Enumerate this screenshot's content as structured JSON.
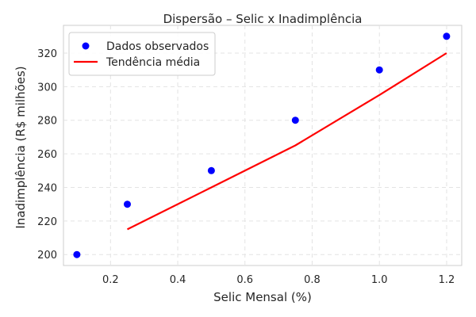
{
  "chart_data": {
    "type": "scatter",
    "title": "Dispersão – Selic x Inadimplência",
    "xlabel": "Selic Mensal (%)",
    "ylabel": "Inadimplência (R$ milhões)",
    "xlim": [
      0.06,
      1.245
    ],
    "ylim": [
      193.5,
      336.5
    ],
    "xticks": [
      0.2,
      0.4,
      0.6,
      0.8,
      1.0,
      1.2
    ],
    "xtick_labels": [
      "0.2",
      "0.4",
      "0.6",
      "0.8",
      "1.0",
      "1.2"
    ],
    "yticks": [
      200,
      220,
      240,
      260,
      280,
      300,
      320
    ],
    "ytick_labels": [
      "200",
      "220",
      "240",
      "260",
      "280",
      "300",
      "320"
    ],
    "grid": true,
    "legend_position": "top-left",
    "series": [
      {
        "name": "Dados observados",
        "kind": "scatter",
        "color": "#0000ff",
        "x": [
          0.1,
          0.25,
          0.5,
          0.75,
          1.0,
          1.2
        ],
        "y": [
          200,
          230,
          250,
          280,
          310,
          330
        ]
      },
      {
        "name": "Tendência média",
        "kind": "line",
        "color": "#ff0000",
        "x": [
          0.25,
          0.5,
          0.75,
          1.0,
          1.2
        ],
        "y": [
          215,
          240,
          265,
          295,
          320
        ]
      }
    ]
  }
}
